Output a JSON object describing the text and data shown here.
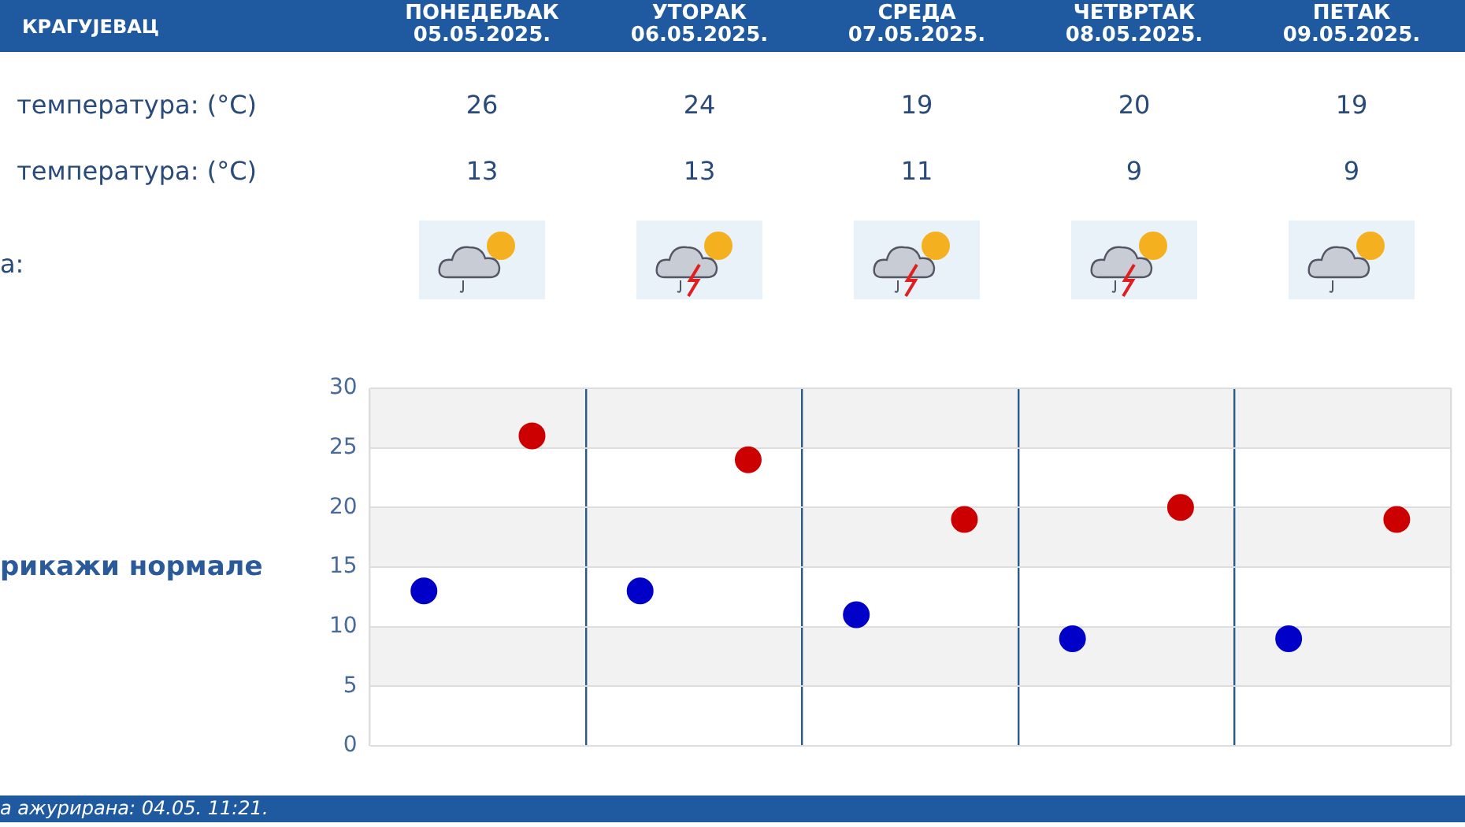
{
  "chart_data": {
    "type": "scatter",
    "title": "КРАГУЈЕВАЦ",
    "categories": [
      null,
      null,
      null,
      null,
      null
    ],
    "series": [
      {
        "color": "#cc0000",
        "values": [
          26,
          24,
          19,
          20,
          19
        ]
      },
      {
        "color": "#0000c8",
        "values": [
          13,
          13,
          11,
          9,
          9
        ]
      }
    ],
    "ylim": [
      0,
      30
    ],
    "yticks": [
      0,
      5,
      10,
      15,
      20,
      25,
      30
    ],
    "grid": true,
    "legend": false,
    "marker": "circle",
    "data_labels": true,
    "annotations": [
      "а:",
      "рикажи нормале",
      "а ажурирана:  04.05. 11:21.",
      "температура: (°C)",
      "температура: (°C)",
      "ПОНЕДЕЉАК 05.05.2025.",
      "УТОРАК 06.05.2025.",
      "СРЕДА 07.05.2025.",
      "ЧЕТВРТАК 08.05.2025.",
      "ПЕТАК 09.05.2025."
    ]
  }
}
